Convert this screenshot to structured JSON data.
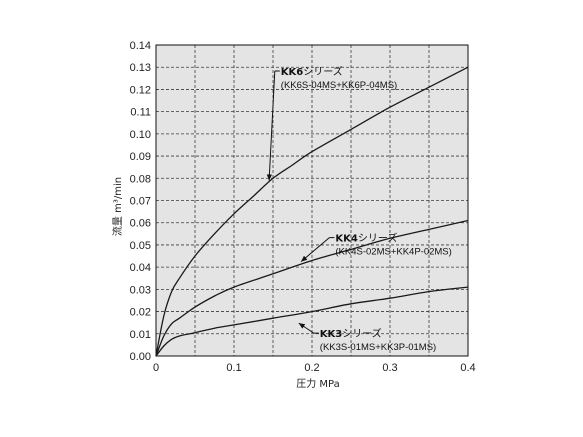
{
  "chart_data": {
    "type": "line",
    "xlabel": "圧力 MPa",
    "ylabel": "流量 m³/min",
    "xlim": [
      0,
      0.4
    ],
    "ylim": [
      0,
      0.14
    ],
    "x_ticks": [
      "0",
      "0.1",
      "0.2",
      "0.3",
      "0.4"
    ],
    "y_ticks": [
      "0.00",
      "0.01",
      "0.02",
      "0.03",
      "0.04",
      "0.05",
      "0.06",
      "0.07",
      "0.08",
      "0.09",
      "0.10",
      "0.11",
      "0.12",
      "0.13",
      "0.14"
    ],
    "grid": true,
    "background": "#e4e4e4",
    "line_color": "#1a1a1a",
    "series": [
      {
        "name": "KK6",
        "title_suffix": "シリーズ",
        "subtitle": "(KK6S-04MS+KK6P-04MS)",
        "x": [
          0,
          0.01,
          0.02,
          0.03,
          0.05,
          0.075,
          0.1,
          0.125,
          0.15,
          0.175,
          0.2,
          0.25,
          0.3,
          0.35,
          0.4
        ],
        "y": [
          0,
          0.018,
          0.029,
          0.035,
          0.045,
          0.055,
          0.064,
          0.072,
          0.08,
          0.086,
          0.092,
          0.102,
          0.112,
          0.121,
          0.13
        ]
      },
      {
        "name": "KK4",
        "title_suffix": "シリーズ",
        "subtitle": "(KK4S-02MS+KK4P-02MS)",
        "x": [
          0,
          0.01,
          0.02,
          0.03,
          0.05,
          0.075,
          0.1,
          0.15,
          0.2,
          0.25,
          0.3,
          0.35,
          0.4
        ],
        "y": [
          0,
          0.009,
          0.0145,
          0.017,
          0.022,
          0.027,
          0.031,
          0.037,
          0.043,
          0.048,
          0.053,
          0.057,
          0.061
        ]
      },
      {
        "name": "KK3",
        "title_suffix": "シリーズ",
        "subtitle": "(KK3S-01MS+KK3P-01MS)",
        "x": [
          0,
          0.01,
          0.02,
          0.03,
          0.05,
          0.075,
          0.1,
          0.15,
          0.2,
          0.25,
          0.3,
          0.35,
          0.4
        ],
        "y": [
          0,
          0.0045,
          0.0075,
          0.009,
          0.0105,
          0.0125,
          0.014,
          0.017,
          0.02,
          0.0235,
          0.026,
          0.029,
          0.031
        ]
      }
    ],
    "annotations": [
      {
        "series": "KK6",
        "point": [
          0.145,
          0.079
        ],
        "label_at": [
          0.16,
          0.1265
        ]
      },
      {
        "series": "KK4",
        "point": [
          0.186,
          0.0425
        ],
        "label_at": [
          0.23,
          0.0515
        ]
      },
      {
        "series": "KK3",
        "point": [
          0.183,
          0.0148
        ],
        "label_at": [
          0.21,
          0.0085
        ]
      }
    ]
  }
}
